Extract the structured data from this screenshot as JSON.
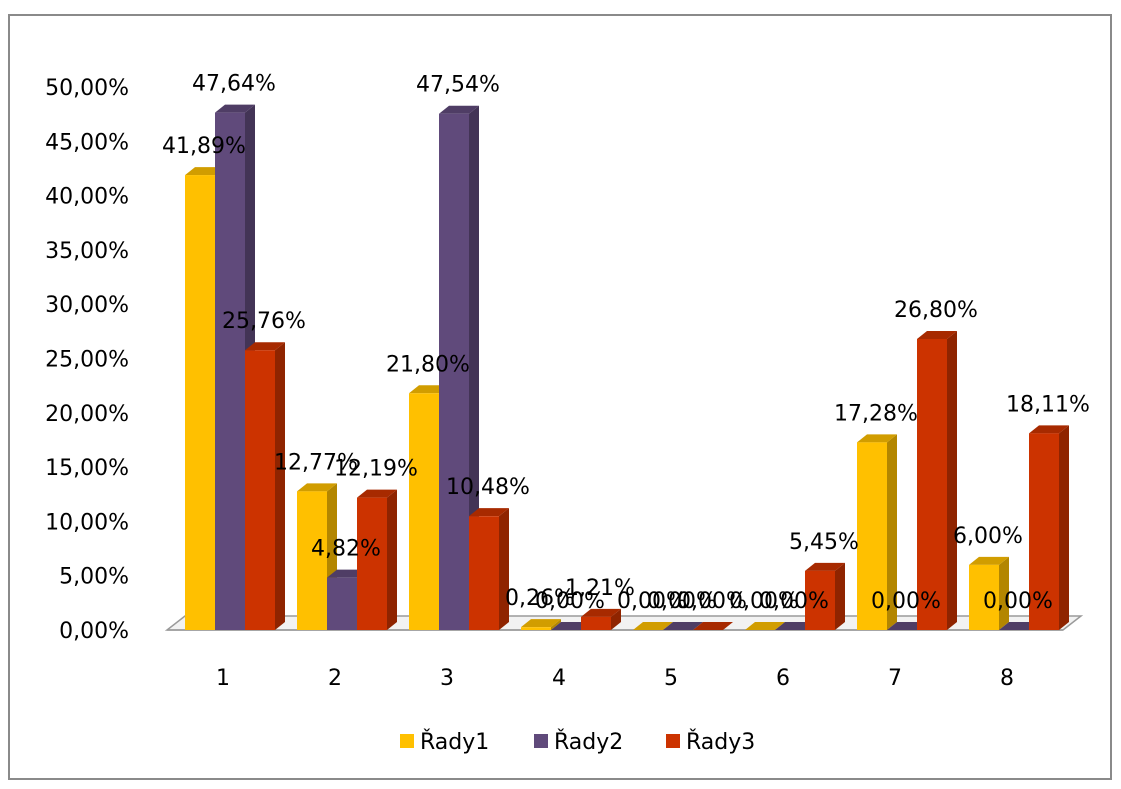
{
  "chart_data": {
    "type": "bar",
    "title": "",
    "xlabel": "",
    "ylabel": "",
    "categories": [
      "1",
      "2",
      "3",
      "4",
      "5",
      "6",
      "7",
      "8"
    ],
    "ylim": [
      0,
      50
    ],
    "y_ticks": [
      "0,00%",
      "5,00%",
      "10,00%",
      "15,00%",
      "20,00%",
      "25,00%",
      "30,00%",
      "35,00%",
      "40,00%",
      "45,00%",
      "50,00%"
    ],
    "legend_position": "bottom",
    "three_d": true,
    "series": [
      {
        "name": "Řady1",
        "color": "#FFC000",
        "values": [
          41.89,
          12.77,
          21.8,
          0.26,
          0.0,
          0.0,
          17.28,
          6.0
        ],
        "labels": [
          "41,89%",
          "12,77%",
          "21,80%",
          "0,26%",
          "0,00%",
          "0,00%",
          "17,28%",
          "6,00%"
        ]
      },
      {
        "name": "Řady2",
        "color": "#604A7B",
        "values": [
          47.64,
          4.82,
          47.54,
          0.0,
          0.0,
          0.0,
          0.0,
          0.0
        ],
        "labels": [
          "47,64%",
          "4,82%",
          "47,54%",
          "0,00%",
          "0,00%",
          "0,00%",
          "0,00%",
          "0,00%"
        ]
      },
      {
        "name": "Řady3",
        "color": "#CC3300",
        "values": [
          25.76,
          12.19,
          10.48,
          1.21,
          0.0,
          5.45,
          26.8,
          18.11
        ],
        "labels": [
          "25,76%",
          "12,19%",
          "10,48%",
          "1,21%",
          "0,00%",
          "5,45%",
          "26,80%",
          "18,11%"
        ]
      }
    ]
  }
}
